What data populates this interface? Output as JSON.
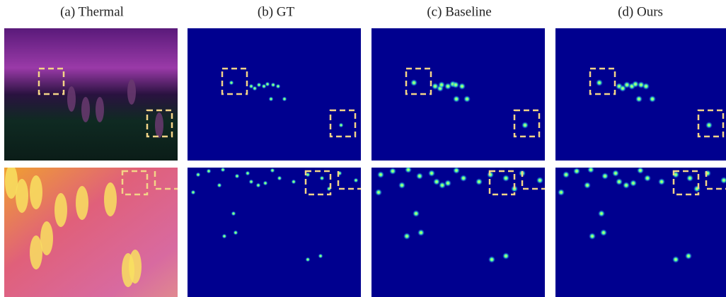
{
  "captions": [
    "(a) Thermal",
    "(b) GT",
    "(c) Baseline",
    "(d) Ours"
  ]
}
